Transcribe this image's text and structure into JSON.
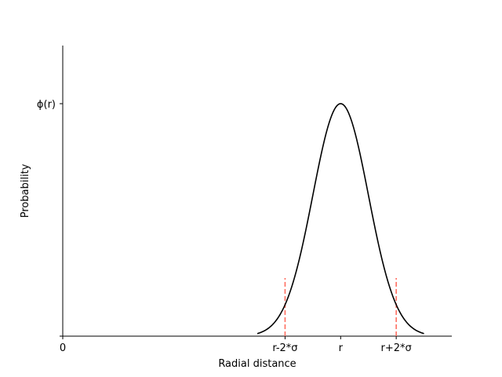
{
  "chart_data": {
    "type": "line",
    "title": "",
    "xlabel": "Radial distance",
    "ylabel": "Probability",
    "xlim": [
      0,
      7
    ],
    "ylim": [
      0,
      1.25
    ],
    "grid": false,
    "x_ticks": [
      {
        "value": 0,
        "label": "0"
      },
      {
        "value": 4,
        "label": "r-2*σ"
      },
      {
        "value": 5,
        "label": "r"
      },
      {
        "value": 6,
        "label": "r+2*σ"
      }
    ],
    "y_ticks": [
      {
        "value": 0,
        "label": ""
      },
      {
        "value": 1,
        "label": "ϕ(r)"
      }
    ],
    "curve": {
      "color": "#000000",
      "mean": 5,
      "sigma": 0.5,
      "x_range": [
        3.5,
        6.5
      ],
      "peak": 1
    },
    "markers": [
      {
        "x": 4,
        "y_range": [
          0,
          0.25
        ],
        "color": "#ff6f61",
        "style": "dashed"
      },
      {
        "x": 6,
        "y_range": [
          0,
          0.25
        ],
        "color": "#ff6f61",
        "style": "dashed"
      }
    ]
  }
}
